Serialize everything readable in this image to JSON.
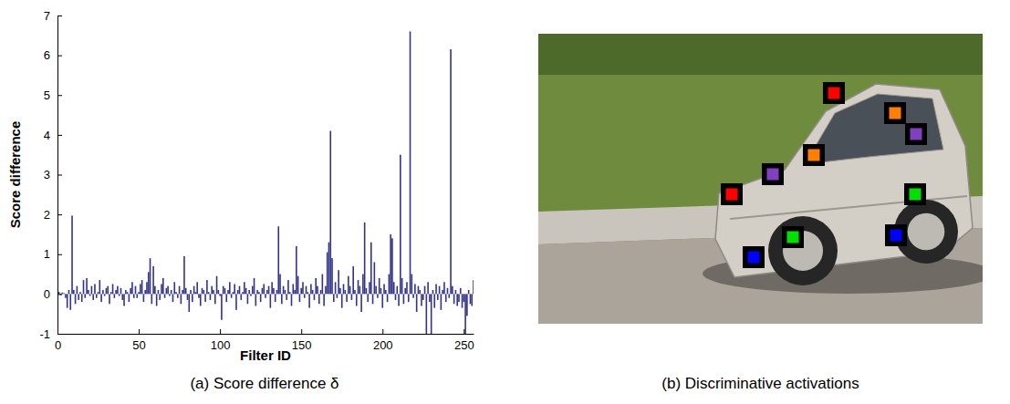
{
  "chart_data": [
    {
      "type": "bar",
      "title": "(a) Score difference δ",
      "x_label": "Filter ID",
      "y_label": "Score difference",
      "color": "#33338a",
      "xlim": [
        0,
        256
      ],
      "xticks": [
        0,
        50,
        100,
        150,
        200,
        250
      ],
      "ylim": [
        -1,
        7
      ],
      "yticks": [
        -1,
        0,
        1,
        2,
        3,
        4,
        5,
        6,
        7
      ],
      "x": [
        1,
        2,
        3,
        4,
        5,
        6,
        7,
        8,
        9,
        10,
        11,
        12,
        13,
        14,
        15,
        16,
        17,
        18,
        19,
        20,
        21,
        22,
        23,
        24,
        25,
        26,
        27,
        28,
        29,
        30,
        31,
        32,
        33,
        34,
        35,
        36,
        37,
        38,
        39,
        40,
        41,
        42,
        43,
        44,
        45,
        46,
        47,
        48,
        49,
        50,
        51,
        52,
        53,
        54,
        55,
        56,
        57,
        58,
        59,
        60,
        61,
        62,
        63,
        64,
        65,
        66,
        67,
        68,
        69,
        70,
        71,
        72,
        73,
        74,
        75,
        76,
        77,
        78,
        79,
        80,
        81,
        82,
        83,
        84,
        85,
        86,
        87,
        88,
        89,
        90,
        91,
        92,
        93,
        94,
        95,
        96,
        97,
        98,
        99,
        100,
        101,
        102,
        103,
        104,
        105,
        106,
        107,
        108,
        109,
        110,
        111,
        112,
        113,
        114,
        115,
        116,
        117,
        118,
        119,
        120,
        121,
        122,
        123,
        124,
        125,
        126,
        127,
        128,
        129,
        130,
        131,
        132,
        133,
        134,
        135,
        136,
        137,
        138,
        139,
        140,
        141,
        142,
        143,
        144,
        145,
        146,
        147,
        148,
        149,
        150,
        151,
        152,
        153,
        154,
        155,
        156,
        157,
        158,
        159,
        160,
        161,
        162,
        163,
        164,
        165,
        166,
        167,
        168,
        169,
        170,
        171,
        172,
        173,
        174,
        175,
        176,
        177,
        178,
        179,
        180,
        181,
        182,
        183,
        184,
        185,
        186,
        187,
        188,
        189,
        190,
        191,
        192,
        193,
        194,
        195,
        196,
        197,
        198,
        199,
        200,
        201,
        202,
        203,
        204,
        205,
        206,
        207,
        208,
        209,
        210,
        211,
        212,
        213,
        214,
        215,
        216,
        217,
        218,
        219,
        220,
        221,
        222,
        223,
        224,
        225,
        226,
        227,
        228,
        229,
        230,
        231,
        232,
        233,
        234,
        235,
        236,
        237,
        238,
        239,
        240,
        241,
        242,
        243,
        244,
        245,
        246,
        247,
        248,
        249,
        250,
        251,
        252,
        253,
        254,
        255,
        256
      ],
      "values": [
        0.05,
        -0.03,
        0.04,
        0.02,
        -0.1,
        -0.35,
        0.1,
        -0.4,
        1.97,
        0.1,
        -0.25,
        0.2,
        -0.15,
        0.05,
        -0.2,
        0.35,
        -0.1,
        0.4,
        0.1,
        -0.05,
        0.2,
        -0.15,
        0.25,
        -0.1,
        0.05,
        0.35,
        -0.2,
        0.1,
        -0.05,
        0.15,
        0.2,
        -0.25,
        0.05,
        0.25,
        -0.1,
        0.1,
        0.2,
        -0.05,
        0.15,
        -0.15,
        -0.3,
        0.1,
        0.05,
        -0.2,
        0.15,
        0.3,
        -0.1,
        0.2,
        -0.1,
        0.05,
        0.25,
        0.35,
        -0.2,
        0.1,
        0.3,
        0.55,
        0.9,
        -0.25,
        0.7,
        0.2,
        -0.3,
        0.1,
        -0.15,
        0.25,
        0.4,
        -0.1,
        0.15,
        0.2,
        -0.05,
        0.1,
        -0.2,
        0.3,
        0.05,
        -0.1,
        0.2,
        -0.25,
        0.1,
        0.95,
        0.15,
        -0.15,
        -0.45,
        0.1,
        -0.2,
        0.2,
        0.05,
        0.3,
        -0.1,
        -0.3,
        0.15,
        0.1,
        -0.2,
        0.35,
        0.05,
        -0.15,
        0.2,
        0.1,
        -0.25,
        0.45,
        0.1,
        -0.05,
        -0.65,
        0.2,
        0.15,
        -0.2,
        0.1,
        0.3,
        -0.1,
        0.05,
        0.25,
        -0.4,
        0.1,
        0.2,
        -0.15,
        0.05,
        0.3,
        0.15,
        -0.25,
        0.1,
        -0.05,
        0.2,
        0.4,
        -0.3,
        0.1,
        0.05,
        -0.2,
        0.15,
        0.25,
        -0.1,
        0.1,
        0.2,
        -0.35,
        0.3,
        0.15,
        -0.2,
        0.1,
        1.7,
        0.5,
        -0.25,
        0.2,
        0.1,
        -0.15,
        0.35,
        0.05,
        -0.3,
        0.25,
        0.1,
        1.2,
        0.45,
        -0.2,
        0.15,
        0.3,
        -0.1,
        0.2,
        0.05,
        -0.35,
        0.25,
        0.1,
        -0.15,
        0.4,
        0.2,
        -0.25,
        0.1,
        0.5,
        -0.3,
        0.2,
        1.05,
        1.3,
        4.1,
        0.9,
        -0.2,
        0.3,
        -0.1,
        0.6,
        0.15,
        -0.35,
        0.25,
        0.1,
        -0.2,
        0.45,
        0.2,
        -0.15,
        0.7,
        0.1,
        -0.3,
        0.35,
        0.2,
        -0.45,
        0.5,
        1.8,
        0.15,
        -0.2,
        0.3,
        1.3,
        -0.25,
        0.8,
        0.2,
        -0.1,
        0.4,
        0.15,
        -0.35,
        0.25,
        0.1,
        -0.2,
        0.5,
        1.5,
        1.4,
        0.3,
        -0.15,
        0.2,
        -0.3,
        3.5,
        0.4,
        -0.25,
        0.15,
        0.3,
        -0.2,
        6.6,
        0.5,
        -0.1,
        0.25,
        -0.45,
        0.2,
        0.1,
        -0.3,
        -0.15,
        0.2,
        -1.0,
        0.3,
        -0.2,
        -1.0,
        0.1,
        -0.35,
        0.25,
        -0.15,
        0.2,
        -0.4,
        0.1,
        0.3,
        -0.2,
        0.15,
        -0.1,
        6.15,
        0.2,
        -0.25,
        0.1,
        -0.3,
        -0.2,
        0.15,
        -0.35,
        -0.2,
        -1.0,
        -0.55,
        0.1,
        -0.25,
        -0.3,
        0.35
      ]
    },
    {
      "type": "image",
      "title": "(b) Discriminative activations",
      "colors": [
        "#ff0000",
        "#ff0000",
        "#ff8000",
        "#ff8000",
        "#8040c0",
        "#8040c0",
        "#00e000",
        "#00e000",
        "#0000ff",
        "#0000ff"
      ]
    }
  ]
}
